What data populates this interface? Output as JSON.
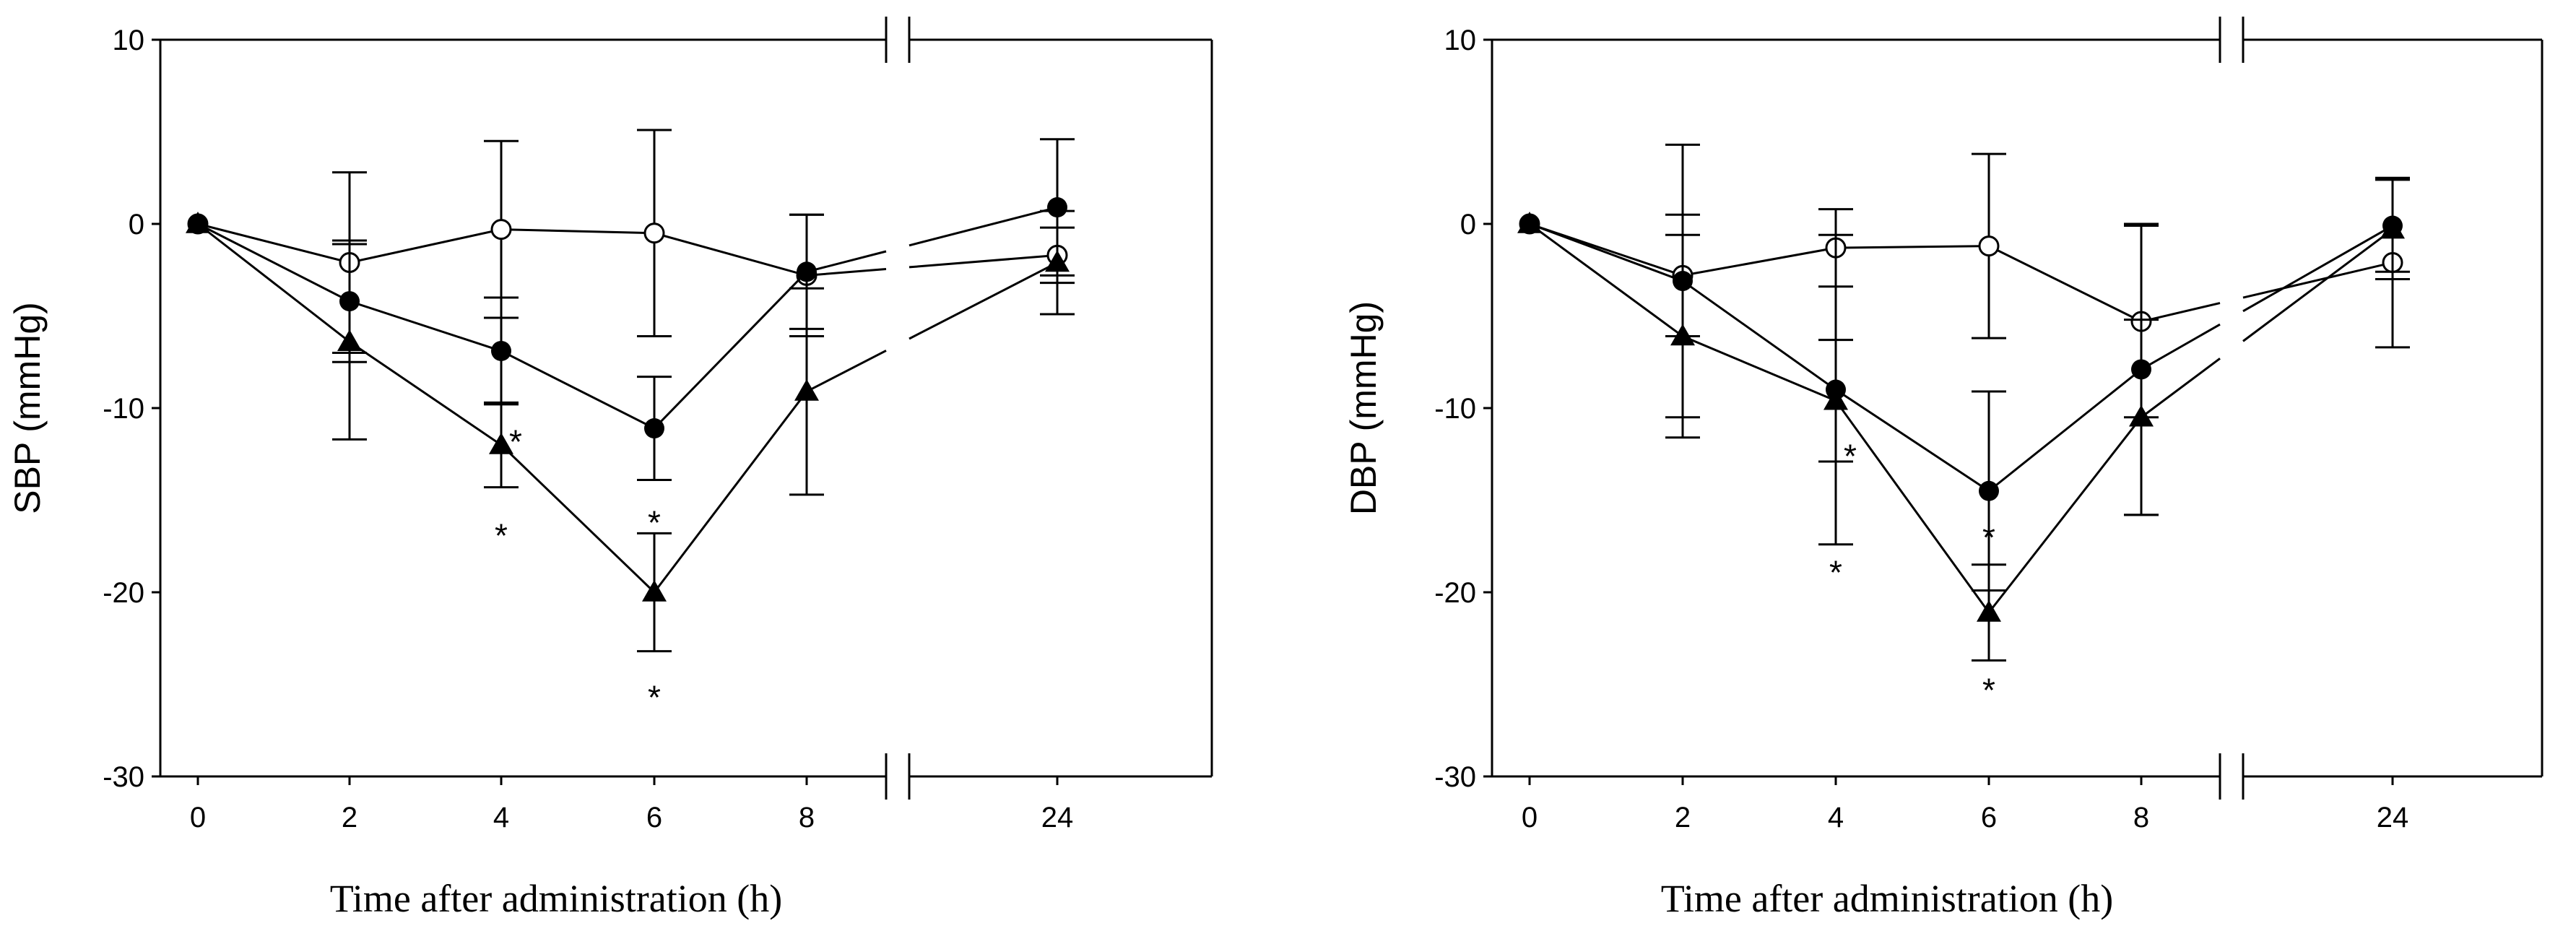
{
  "chart_data": [
    {
      "type": "line",
      "ylabel": "SBP (mmHg)",
      "xlabel": "Time after administration (h)",
      "ylim": [
        -30,
        10
      ],
      "yticks": [
        "10",
        "0",
        "-10",
        "-20",
        "-30"
      ],
      "x": [
        0,
        2,
        4,
        6,
        8,
        24
      ],
      "xtick_labels": [
        "0",
        "2",
        "4",
        "6",
        "8",
        "24"
      ],
      "x_axis_break": "between 8 and 24",
      "series": [
        {
          "name": "open circle",
          "marker": "open-circle",
          "values": [
            0,
            -2.1,
            -0.3,
            -0.5,
            -2.8,
            -1.7
          ],
          "errors": [
            0,
            4.9,
            4.8,
            5.6,
            3.3,
            1.5
          ]
        },
        {
          "name": "filled circle",
          "marker": "filled-circle",
          "values": [
            0,
            -4.2,
            -6.9,
            -11.1,
            -2.6,
            0.9
          ],
          "errors": [
            0,
            3.3,
            2.9,
            2.8,
            3.1,
            3.7
          ]
        },
        {
          "name": "filled triangle",
          "marker": "filled-triangle",
          "values": [
            0,
            -6.4,
            -12.0,
            -20.0,
            -9.1,
            -2.1
          ],
          "errors": [
            0,
            5.3,
            2.3,
            3.2,
            5.6,
            2.8
          ]
        }
      ],
      "annotations": [
        {
          "text": "*",
          "x": 4,
          "y": -11.5
        },
        {
          "text": "*",
          "x": 4,
          "y": -16.6
        },
        {
          "text": "*",
          "x": 6,
          "y": -15.9
        },
        {
          "text": "*",
          "x": 6,
          "y": -25.4
        }
      ]
    },
    {
      "type": "line",
      "ylabel": "DBP (mmHg)",
      "xlabel": "Time after administration (h)",
      "ylim": [
        -30,
        10
      ],
      "yticks": [
        "10",
        "0",
        "-10",
        "-20",
        "-30"
      ],
      "x": [
        0,
        2,
        4,
        6,
        8,
        24
      ],
      "xtick_labels": [
        "0",
        "2",
        "4",
        "6",
        "8",
        "24"
      ],
      "x_axis_break": "between 8 and 24",
      "series": [
        {
          "name": "open circle",
          "marker": "open-circle",
          "values": [
            0,
            -2.8,
            -1.3,
            -1.2,
            -5.3,
            -2.1
          ],
          "errors": [
            0,
            3.3,
            2.1,
            5.0,
            5.2,
            4.6
          ]
        },
        {
          "name": "filled circle",
          "marker": "filled-circle",
          "values": [
            0,
            -3.1,
            -9.0,
            -14.5,
            -7.9,
            -0.1
          ],
          "errors": [
            0,
            7.4,
            8.4,
            5.4,
            7.9,
            2.5
          ]
        },
        {
          "name": "filled triangle",
          "marker": "filled-triangle",
          "values": [
            0,
            -6.1,
            -9.6,
            -21.1,
            -10.5,
            -0.3
          ],
          "errors": [
            0,
            5.5,
            3.3,
            2.6,
            5.3,
            2.7
          ]
        }
      ],
      "annotations": [
        {
          "text": "*",
          "x": 4,
          "y": -12.3
        },
        {
          "text": "*",
          "x": 4,
          "y": -18.6
        },
        {
          "text": "*",
          "x": 6,
          "y": -16.7
        },
        {
          "text": "*",
          "x": 6,
          "y": -25.0
        }
      ]
    }
  ]
}
